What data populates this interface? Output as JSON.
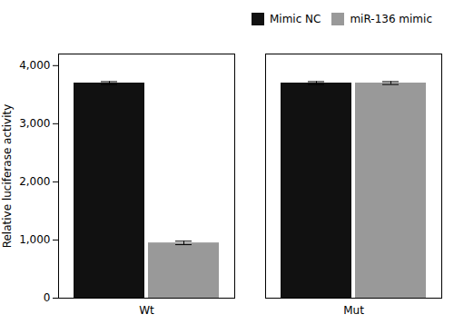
{
  "chart_data": {
    "type": "bar",
    "categories": [
      "Wt",
      "Mut"
    ],
    "series": [
      {
        "name": "Mimic NC",
        "color": "#111111",
        "values": [
          3700,
          3700
        ],
        "errors": [
          25,
          25
        ]
      },
      {
        "name": "miR-136 mimic",
        "color": "#999999",
        "values": [
          950,
          3700
        ],
        "errors": [
          30,
          25
        ]
      }
    ],
    "ylabel": "Relative luciferase activity",
    "ylim": [
      0,
      4200
    ],
    "yticks": [
      0,
      1000,
      2000,
      3000,
      4000
    ],
    "legend": "upper right"
  }
}
